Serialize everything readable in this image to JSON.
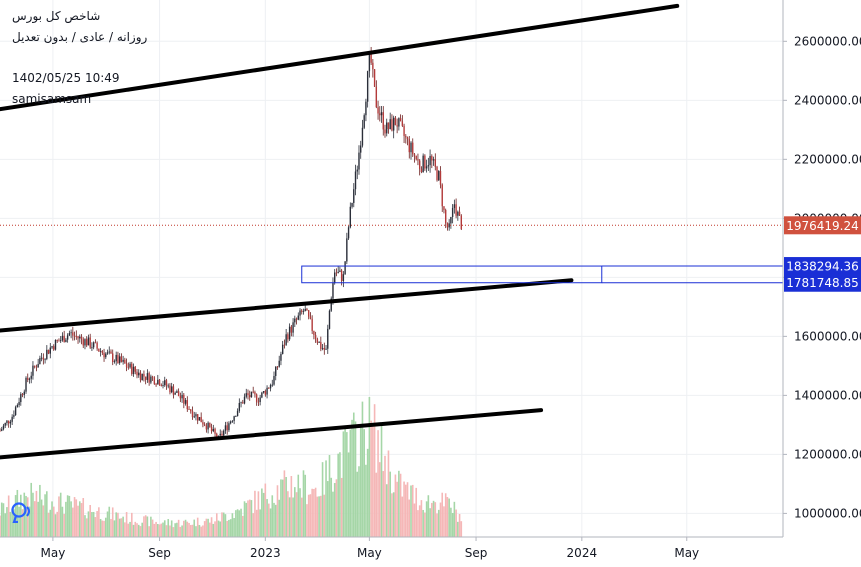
{
  "header": {
    "title": "شاخص کل بورس",
    "subtitle": "روزانه / عادی / بدون تعدیل",
    "datetime": "1402/05/25 10:49",
    "author": "samisamsam"
  },
  "colors": {
    "up": "#26a69a",
    "down": "#ef5350",
    "volume_up": "#a5d6a7",
    "volume_down": "#f5b7b7",
    "price_line": "#c0392b",
    "price_tag": "#d0513e",
    "zone": "#1a2fd6",
    "trendline": "#000000",
    "grid": "#eef0f3",
    "axis_text": "#131722"
  },
  "logo_icon": "tradingview-logo-icon",
  "chart_data": {
    "type": "candlestick",
    "x_axis": {
      "ticks": [
        "May",
        "Sep",
        "2023",
        "May",
        "Sep",
        "2024",
        "May"
      ],
      "tick_dates": [
        "2022-05-01",
        "2022-09-01",
        "2023-01-01",
        "2023-05-01",
        "2023-09-01",
        "2024-01-01",
        "2024-05-01"
      ],
      "range": [
        "2022-03-01",
        "2024-08-20"
      ]
    },
    "y_axis": {
      "ticks": [
        "1000000.00",
        "1200000.00",
        "1400000.00",
        "1600000.00",
        "1800000.00",
        "2000000.00",
        "2200000.00",
        "2400000.00",
        "2600000.00"
      ],
      "range": [
        920000,
        2740000
      ],
      "position": "right"
    },
    "grid": true,
    "last_price": {
      "value": 1976419.24,
      "label": "1976419.24"
    },
    "zone": {
      "upper": {
        "value": 1838294.36,
        "label": "1838294.36"
      },
      "lower": {
        "value": 1781748.85,
        "label": "1781748.85"
      },
      "start_date": "2023-02-12",
      "end_date": "2024-01-24"
    },
    "trendlines": [
      {
        "name": "upper-channel",
        "points": [
          [
            "2022-03-01",
            2370000
          ],
          [
            "2024-04-20",
            2720000
          ]
        ]
      },
      {
        "name": "middle-channel",
        "points": [
          [
            "2022-03-01",
            1620000
          ],
          [
            "2023-12-20",
            1790000
          ]
        ]
      },
      {
        "name": "lower-channel",
        "points": [
          [
            "2022-03-01",
            1190000
          ],
          [
            "2023-11-15",
            1350000
          ]
        ]
      }
    ],
    "price_path": [
      [
        "2022-03-01",
        1280000
      ],
      [
        "2022-03-15",
        1330000
      ],
      [
        "2022-04-01",
        1450000
      ],
      [
        "2022-04-15",
        1520000
      ],
      [
        "2022-05-01",
        1570000
      ],
      [
        "2022-05-20",
        1610000
      ],
      [
        "2022-06-10",
        1580000
      ],
      [
        "2022-07-01",
        1540000
      ],
      [
        "2022-07-20",
        1510000
      ],
      [
        "2022-08-10",
        1470000
      ],
      [
        "2022-09-01",
        1450000
      ],
      [
        "2022-09-20",
        1410000
      ],
      [
        "2022-10-10",
        1340000
      ],
      [
        "2022-10-25",
        1300000
      ],
      [
        "2022-11-08",
        1250000
      ],
      [
        "2022-11-25",
        1330000
      ],
      [
        "2022-12-10",
        1400000
      ],
      [
        "2022-12-25",
        1390000
      ],
      [
        "2023-01-10",
        1450000
      ],
      [
        "2023-01-25",
        1600000
      ],
      [
        "2023-02-05",
        1650000
      ],
      [
        "2023-02-15",
        1690000
      ],
      [
        "2023-02-25",
        1620000
      ],
      [
        "2023-03-05",
        1570000
      ],
      [
        "2023-03-12",
        1550000
      ],
      [
        "2023-03-17",
        1720000
      ],
      [
        "2023-03-22",
        1820000
      ],
      [
        "2023-04-01",
        1800000
      ],
      [
        "2023-04-08",
        2000000
      ],
      [
        "2023-04-18",
        2200000
      ],
      [
        "2023-04-26",
        2400000
      ],
      [
        "2023-05-02",
        2550000
      ],
      [
        "2023-05-08",
        2400000
      ],
      [
        "2023-05-20",
        2300000
      ],
      [
        "2023-06-01",
        2330000
      ],
      [
        "2023-06-15",
        2250000
      ],
      [
        "2023-06-28",
        2180000
      ],
      [
        "2023-07-10",
        2200000
      ],
      [
        "2023-07-20",
        2140000
      ],
      [
        "2023-07-28",
        1980000
      ],
      [
        "2023-08-01",
        1960000
      ],
      [
        "2023-08-07",
        2050000
      ],
      [
        "2023-08-12",
        2000000
      ],
      [
        "2023-08-16",
        1976419
      ]
    ],
    "volume_path": [
      [
        "2022-03-01",
        0.22
      ],
      [
        "2022-04-01",
        0.35
      ],
      [
        "2022-05-01",
        0.3
      ],
      [
        "2022-06-01",
        0.25
      ],
      [
        "2022-07-01",
        0.2
      ],
      [
        "2022-08-01",
        0.15
      ],
      [
        "2022-09-01",
        0.12
      ],
      [
        "2022-10-01",
        0.12
      ],
      [
        "2022-11-01",
        0.14
      ],
      [
        "2022-12-01",
        0.22
      ],
      [
        "2023-01-01",
        0.35
      ],
      [
        "2023-02-01",
        0.45
      ],
      [
        "2023-03-01",
        0.4
      ],
      [
        "2023-04-01",
        0.7
      ],
      [
        "2023-05-01",
        0.95
      ],
      [
        "2023-06-01",
        0.45
      ],
      [
        "2023-07-01",
        0.3
      ],
      [
        "2023-08-01",
        0.28
      ],
      [
        "2023-08-16",
        0.15
      ]
    ]
  }
}
